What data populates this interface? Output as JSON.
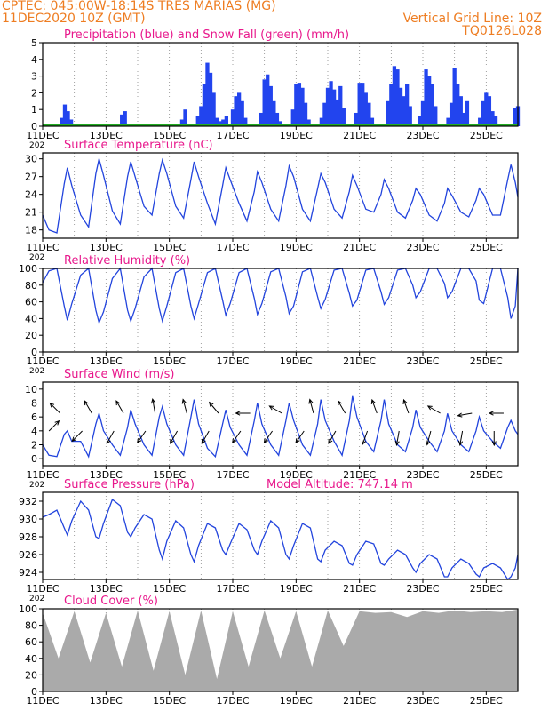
{
  "header": {
    "line1": "CPTEC:   045:00W-18:14S   TRES MARIAS (MG)",
    "line2_left": "11DEC2020 10Z (GMT)",
    "line2_right": "Vertical Grid Line: 10Z",
    "line3_right": "TQ0126L028"
  },
  "colors": {
    "header": "#ee7d22",
    "title": "#e8188c",
    "line": "#2244dd",
    "precip": "#2244ee",
    "snow": "#22aa22",
    "cloud": "#aaaaaa",
    "grid": "#888888",
    "arrow": "#000000"
  },
  "x_axis": {
    "tick_labels": [
      "11DEC",
      "13DEC",
      "15DEC",
      "17DEC",
      "19DEC",
      "21DEC",
      "23DEC",
      "25DEC"
    ],
    "tick_days": [
      0,
      2,
      4,
      6,
      8,
      10,
      12,
      14
    ],
    "truncated_year": "202",
    "range_days": [
      0,
      15
    ]
  },
  "panels": [
    {
      "id": "precip",
      "title": "Precipitation (blue) and Snow Fall (green) (mm/h)",
      "ylim": [
        0,
        5
      ],
      "yticks": [
        "0",
        "1",
        "2",
        "3",
        "4",
        "5"
      ]
    },
    {
      "id": "temp",
      "title": "Surface Temperature (nC)",
      "ylim": [
        16.6,
        31
      ],
      "yticks": [
        "18",
        "21",
        "24",
        "27",
        "30"
      ]
    },
    {
      "id": "rh",
      "title": "Relative Humidity (%)",
      "ylim": [
        0,
        100
      ],
      "yticks": [
        "0",
        "20",
        "40",
        "60",
        "80",
        "100"
      ]
    },
    {
      "id": "wind",
      "title": "Surface Wind (m/s)",
      "ylim": [
        -1,
        11
      ],
      "yticks": [
        "0",
        "2",
        "4",
        "6",
        "8",
        "10"
      ]
    },
    {
      "id": "pres",
      "title": "Surface Pressure (hPa)",
      "subtitle": "Model Altitude: 747.14 m",
      "ylim": [
        923.2,
        933
      ],
      "yticks": [
        "924",
        "926",
        "928",
        "930",
        "932"
      ]
    },
    {
      "id": "cloud",
      "title": "Cloud Cover (%)",
      "ylim": [
        0,
        100
      ],
      "yticks": [
        "0",
        "20",
        "40",
        "60",
        "80",
        "100"
      ]
    }
  ],
  "chart_data": [
    {
      "type": "bar",
      "title": "Precipitation (blue) and Snow Fall (green) (mm/h)",
      "x_unit": "days since 11DEC2020 10Z",
      "series": [
        {
          "name": "Precipitation",
          "x": [
            0.6,
            0.7,
            0.8,
            0.9,
            2.5,
            2.6,
            4.4,
            4.5,
            4.9,
            5.0,
            5.1,
            5.2,
            5.3,
            5.4,
            5.5,
            5.6,
            5.7,
            5.8,
            6.0,
            6.1,
            6.2,
            6.3,
            6.4,
            6.9,
            7.0,
            7.1,
            7.2,
            7.3,
            7.4,
            7.5,
            7.9,
            8.0,
            8.1,
            8.2,
            8.3,
            8.4,
            8.8,
            8.9,
            9.0,
            9.1,
            9.2,
            9.3,
            9.4,
            9.5,
            9.9,
            10.0,
            10.1,
            10.2,
            10.3,
            10.4,
            10.9,
            11.0,
            11.1,
            11.2,
            11.3,
            11.4,
            11.5,
            11.6,
            11.9,
            12.0,
            12.1,
            12.2,
            12.3,
            12.4,
            12.8,
            12.9,
            13.0,
            13.1,
            13.2,
            13.3,
            13.4,
            13.8,
            13.9,
            14.0,
            14.1,
            14.2,
            14.3,
            14.9,
            15.0
          ],
          "values": [
            0.5,
            1.3,
            0.9,
            0.4,
            0.7,
            0.9,
            0.4,
            1.0,
            0.6,
            1.2,
            2.5,
            3.8,
            3.2,
            2.0,
            0.5,
            0.3,
            0.4,
            0.6,
            1.0,
            1.8,
            2.0,
            1.5,
            0.5,
            0.8,
            2.8,
            3.1,
            2.4,
            1.5,
            0.8,
            0.3,
            1.0,
            2.5,
            2.6,
            2.3,
            1.4,
            0.4,
            0.5,
            1.4,
            2.3,
            2.7,
            2.2,
            1.6,
            2.4,
            1.1,
            0.8,
            2.6,
            2.6,
            2.0,
            1.4,
            0.5,
            1.5,
            2.5,
            3.6,
            3.4,
            2.3,
            1.8,
            2.5,
            1.2,
            0.6,
            1.5,
            3.4,
            3.0,
            2.5,
            1.2,
            0.5,
            1.4,
            3.5,
            2.5,
            1.8,
            0.8,
            1.5,
            0.5,
            1.5,
            2.0,
            1.8,
            0.9,
            0.6,
            1.1,
            1.2
          ]
        },
        {
          "name": "Snow Fall",
          "x": [
            0,
            15
          ],
          "values": [
            0,
            0
          ]
        }
      ]
    },
    {
      "type": "line",
      "title": "Surface Temperature (nC)",
      "x_unit": "days since 11DEC2020 10Z",
      "series": [
        {
          "name": "Surface Temperature",
          "x": [
            0,
            0.2,
            0.45,
            0.68,
            0.78,
            0.92,
            1.2,
            1.45,
            1.68,
            1.78,
            1.92,
            2.2,
            2.45,
            2.68,
            2.78,
            2.92,
            3.2,
            3.45,
            3.68,
            3.78,
            3.92,
            4.2,
            4.45,
            4.68,
            4.78,
            4.92,
            5.2,
            5.45,
            5.68,
            5.78,
            5.92,
            6.2,
            6.45,
            6.68,
            6.78,
            6.92,
            7.2,
            7.45,
            7.68,
            7.78,
            7.92,
            8.2,
            8.45,
            8.68,
            8.78,
            8.92,
            9.2,
            9.45,
            9.68,
            9.78,
            9.92,
            10.2,
            10.45,
            10.68,
            10.78,
            10.92,
            11.2,
            11.45,
            11.68,
            11.78,
            11.92,
            12.2,
            12.45,
            12.68,
            12.78,
            12.92,
            13.2,
            13.45,
            13.68,
            13.78,
            13.92,
            14.2,
            14.45,
            14.68,
            14.78,
            14.92,
            15.0
          ],
          "values": [
            20.5,
            18.0,
            17.5,
            25.8,
            28.5,
            25.5,
            20.5,
            18.5,
            27.5,
            30.0,
            27.2,
            21.2,
            19.0,
            27.0,
            29.5,
            27.0,
            22.0,
            20.5,
            27.5,
            29.8,
            27.5,
            22.0,
            20.0,
            26.5,
            29.5,
            27.0,
            22.5,
            19.0,
            25.5,
            28.5,
            26.5,
            22.5,
            19.5,
            24.5,
            27.8,
            26.0,
            21.5,
            19.5,
            25.5,
            28.8,
            27.0,
            21.5,
            19.5,
            25.0,
            27.5,
            26.0,
            21.5,
            20.0,
            24.5,
            27.2,
            25.5,
            21.5,
            21.0,
            24.0,
            26.5,
            25.0,
            21.0,
            20.0,
            23.0,
            25.0,
            24.0,
            20.5,
            19.5,
            22.5,
            25.0,
            23.8,
            21.0,
            20.2,
            23.0,
            25.0,
            24.0,
            20.5,
            20.5,
            26.5,
            29.0,
            26.0,
            23.5
          ]
        }
      ]
    },
    {
      "type": "line",
      "title": "Relative Humidity (%)",
      "x_unit": "days since 11DEC2020 10Z",
      "series": [
        {
          "name": "Relative Humidity",
          "x": [
            0,
            0.2,
            0.45,
            0.68,
            0.78,
            0.92,
            1.2,
            1.45,
            1.68,
            1.78,
            1.92,
            2.2,
            2.45,
            2.68,
            2.78,
            2.92,
            3.2,
            3.45,
            3.68,
            3.78,
            3.92,
            4.2,
            4.45,
            4.68,
            4.78,
            4.92,
            5.2,
            5.45,
            5.68,
            5.78,
            5.92,
            6.2,
            6.45,
            6.68,
            6.78,
            6.92,
            7.2,
            7.45,
            7.68,
            7.78,
            7.92,
            8.2,
            8.45,
            8.68,
            8.78,
            8.92,
            9.2,
            9.45,
            9.68,
            9.78,
            9.92,
            10.2,
            10.45,
            10.68,
            10.78,
            10.92,
            11.2,
            11.45,
            11.68,
            11.78,
            11.92,
            12.2,
            12.45,
            12.68,
            12.78,
            12.92,
            13.2,
            13.45,
            13.68,
            13.78,
            13.92,
            14.2,
            14.45,
            14.68,
            14.78,
            14.92,
            15.0
          ],
          "values": [
            83,
            97,
            100,
            55,
            38,
            58,
            92,
            100,
            50,
            35,
            48,
            88,
            100,
            50,
            37,
            52,
            90,
            100,
            52,
            37,
            55,
            95,
            100,
            55,
            40,
            58,
            95,
            100,
            62,
            44,
            58,
            95,
            100,
            64,
            45,
            58,
            96,
            100,
            66,
            46,
            55,
            96,
            100,
            66,
            52,
            63,
            98,
            100,
            70,
            55,
            62,
            98,
            100,
            72,
            57,
            65,
            98,
            100,
            80,
            65,
            72,
            100,
            100,
            82,
            65,
            72,
            100,
            100,
            85,
            62,
            58,
            100,
            100,
            65,
            40,
            55,
            100
          ]
        }
      ]
    },
    {
      "type": "line",
      "title": "Surface Wind (m/s)",
      "x_unit": "days since 11DEC2020 10Z",
      "series": [
        {
          "name": "Wind speed",
          "x": [
            0,
            0.2,
            0.45,
            0.68,
            0.78,
            0.92,
            1.2,
            1.45,
            1.68,
            1.78,
            1.92,
            2.2,
            2.45,
            2.68,
            2.78,
            2.92,
            3.2,
            3.45,
            3.68,
            3.78,
            3.92,
            4.2,
            4.45,
            4.68,
            4.78,
            4.92,
            5.2,
            5.45,
            5.68,
            5.78,
            5.92,
            6.2,
            6.45,
            6.68,
            6.78,
            6.92,
            7.2,
            7.45,
            7.68,
            7.78,
            7.92,
            8.2,
            8.45,
            8.68,
            8.78,
            8.92,
            9.2,
            9.45,
            9.68,
            9.78,
            9.92,
            10.2,
            10.45,
            10.68,
            10.78,
            10.92,
            11.2,
            11.45,
            11.68,
            11.78,
            11.92,
            12.2,
            12.45,
            12.68,
            12.78,
            12.92,
            13.2,
            13.45,
            13.68,
            13.78,
            13.92,
            14.2,
            14.45,
            14.68,
            14.78,
            14.92,
            15.0
          ],
          "values": [
            2.0,
            0.5,
            0.3,
            3.5,
            4.0,
            2.5,
            2.5,
            0.3,
            5.0,
            6.5,
            4.0,
            2.0,
            0.5,
            4.5,
            7.0,
            5.0,
            2.0,
            0.5,
            6.0,
            7.5,
            5.0,
            2.0,
            0.5,
            6.0,
            8.5,
            5.0,
            1.5,
            0.3,
            5.0,
            7.0,
            4.5,
            2.0,
            0.5,
            5.5,
            8.0,
            5.0,
            2.0,
            0.5,
            5.5,
            8.0,
            5.5,
            2.0,
            0.5,
            5.0,
            8.5,
            5.5,
            2.5,
            0.5,
            5.5,
            9.0,
            6.0,
            2.5,
            1.0,
            5.5,
            8.5,
            5.0,
            2.0,
            1.0,
            4.5,
            7.0,
            4.5,
            2.5,
            1.0,
            4.0,
            6.5,
            4.0,
            2.0,
            1.0,
            4.0,
            6.0,
            4.0,
            2.5,
            1.5,
            4.5,
            5.5,
            4.0,
            3.5
          ]
        },
        {
          "name": "Wind direction (deg, to)",
          "x": [
            0.2,
            0.55,
            1.25,
            1.55,
            2.25,
            2.55,
            3.25,
            3.55,
            4.25,
            4.55,
            5.25,
            5.55,
            6.25,
            6.55,
            7.25,
            7.55,
            8.25,
            8.55,
            9.25,
            9.55,
            10.25,
            10.55,
            11.25,
            11.55,
            12.25,
            12.55,
            13.25,
            13.55,
            14.25,
            14.55
          ],
          "values": [
            45,
            315,
            225,
            330,
            210,
            330,
            215,
            350,
            210,
            345,
            210,
            320,
            215,
            270,
            215,
            300,
            215,
            345,
            210,
            330,
            200,
            340,
            190,
            340,
            195,
            300,
            190,
            260,
            180,
            270
          ]
        }
      ]
    },
    {
      "type": "line",
      "title": "Surface Pressure (hPa)",
      "x_unit": "days since 11DEC2020 10Z",
      "series": [
        {
          "name": "Surface Pressure",
          "x": [
            0,
            0.2,
            0.45,
            0.68,
            0.78,
            0.92,
            1.2,
            1.45,
            1.68,
            1.78,
            1.92,
            2.2,
            2.45,
            2.68,
            2.78,
            2.92,
            3.2,
            3.45,
            3.68,
            3.78,
            3.92,
            4.2,
            4.45,
            4.68,
            4.78,
            4.92,
            5.2,
            5.45,
            5.68,
            5.78,
            5.92,
            6.2,
            6.45,
            6.68,
            6.78,
            6.92,
            7.2,
            7.45,
            7.68,
            7.78,
            7.92,
            8.2,
            8.45,
            8.68,
            8.78,
            8.92,
            9.2,
            9.45,
            9.68,
            9.78,
            9.92,
            10.2,
            10.45,
            10.68,
            10.78,
            10.92,
            11.2,
            11.45,
            11.68,
            11.78,
            11.92,
            12.2,
            12.45,
            12.68,
            12.78,
            12.92,
            13.2,
            13.45,
            13.68,
            13.78,
            13.92,
            14.2,
            14.45,
            14.68,
            14.78,
            14.92,
            15.0
          ],
          "values": [
            930.2,
            930.5,
            931.0,
            929.0,
            928.2,
            929.8,
            932.0,
            931.0,
            928.0,
            927.8,
            929.5,
            932.2,
            931.5,
            928.5,
            928.0,
            929.0,
            930.5,
            930.0,
            926.5,
            925.5,
            927.5,
            929.8,
            929.0,
            926.0,
            925.2,
            927.0,
            929.5,
            929.0,
            926.5,
            926.0,
            927.2,
            929.5,
            928.8,
            926.5,
            926.0,
            927.5,
            929.8,
            929.0,
            926.0,
            925.5,
            927.0,
            929.5,
            929.0,
            925.5,
            925.2,
            926.5,
            927.5,
            927.0,
            925.0,
            924.8,
            926.0,
            927.5,
            927.2,
            925.0,
            924.8,
            925.5,
            926.5,
            926.0,
            924.5,
            924.0,
            925.0,
            926.0,
            925.5,
            923.5,
            923.5,
            924.5,
            925.5,
            925.0,
            923.8,
            923.5,
            924.5,
            925.0,
            924.5,
            923.2,
            923.5,
            924.5,
            926.0
          ]
        }
      ]
    },
    {
      "type": "bar",
      "title": "Cloud Cover (%)",
      "x_unit": "days since 11DEC2020 10Z",
      "series": [
        {
          "name": "Cloud Cover",
          "x": [
            0,
            0.5,
            1.0,
            1.5,
            2.0,
            2.5,
            3.0,
            3.5,
            4.0,
            4.5,
            5.0,
            5.5,
            6.0,
            6.5,
            7.0,
            7.5,
            8.0,
            8.5,
            9.0,
            9.5,
            10.0,
            10.5,
            11.0,
            11.5,
            12.0,
            12.5,
            13.0,
            13.5,
            14.0,
            14.5,
            15.0
          ],
          "values": [
            95,
            40,
            97,
            35,
            95,
            30,
            98,
            25,
            97,
            20,
            98,
            15,
            97,
            30,
            98,
            40,
            97,
            30,
            98,
            55,
            97,
            95,
            96,
            90,
            97,
            95,
            98,
            96,
            97,
            96,
            99
          ]
        }
      ]
    }
  ]
}
